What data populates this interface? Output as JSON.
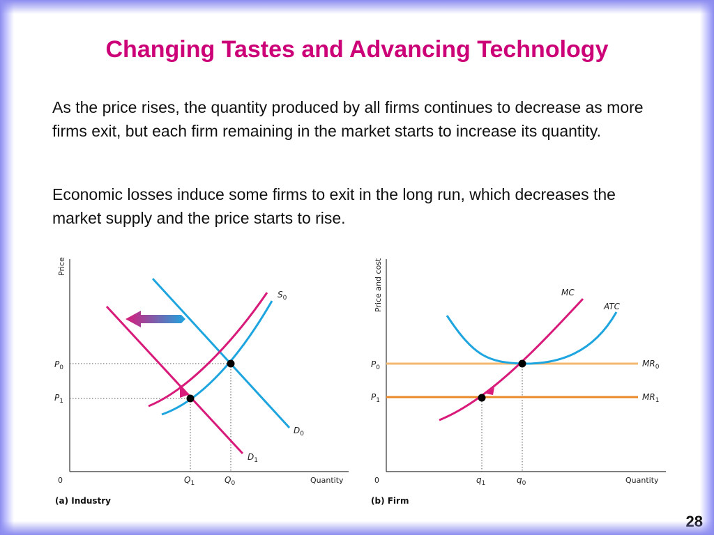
{
  "slide": {
    "title": "Changing Tastes and Advancing Technology",
    "paragraphs": [
      "As the price rises, the quantity produced by all firms continues to decrease as more firms exit, but each firm remaining in the market starts to increase its quantity.",
      "Economic losses induce some firms to exit in the long run, which decreases the market supply and the price starts to rise."
    ],
    "page_number": "28"
  },
  "colors": {
    "title": "#cc0077",
    "magenta_curve": "#d81b7a",
    "cyan_curve": "#1ea5df",
    "mr0_line": "#f5b870",
    "mr1_line": "#ea8a2a",
    "point": "#000000",
    "axis": "#333333",
    "border": "#8c8cf0"
  },
  "industry_panel": {
    "caption": "(a) Industry",
    "y_axis_label": "Price",
    "x_axis_label": "Quantity",
    "origin": "0",
    "p0": "P",
    "p0_sub": "0",
    "p1": "P",
    "p1_sub": "1",
    "q1": "Q",
    "q1_sub": "1",
    "q0": "Q",
    "q0_sub": "0",
    "s0": "S",
    "s0_sub": "0",
    "d0": "D",
    "d0_sub": "0",
    "d1": "D",
    "d1_sub": "1",
    "arrow_icon": "left-arrow-icon"
  },
  "firm_panel": {
    "caption": "(b) Firm",
    "y_axis_label": "Price and cost",
    "x_axis_label": "Quantity",
    "origin": "0",
    "p0": "P",
    "p0_sub": "0",
    "p1": "P",
    "p1_sub": "1",
    "q1": "q",
    "q1_sub": "1",
    "q0": "q",
    "q0_sub": "0",
    "mc": "MC",
    "atc": "ATC",
    "mr0": "MR",
    "mr0_sub": "0",
    "mr1": "MR",
    "mr1_sub": "1",
    "arrow_icon": "up-right-arrow-icon"
  }
}
